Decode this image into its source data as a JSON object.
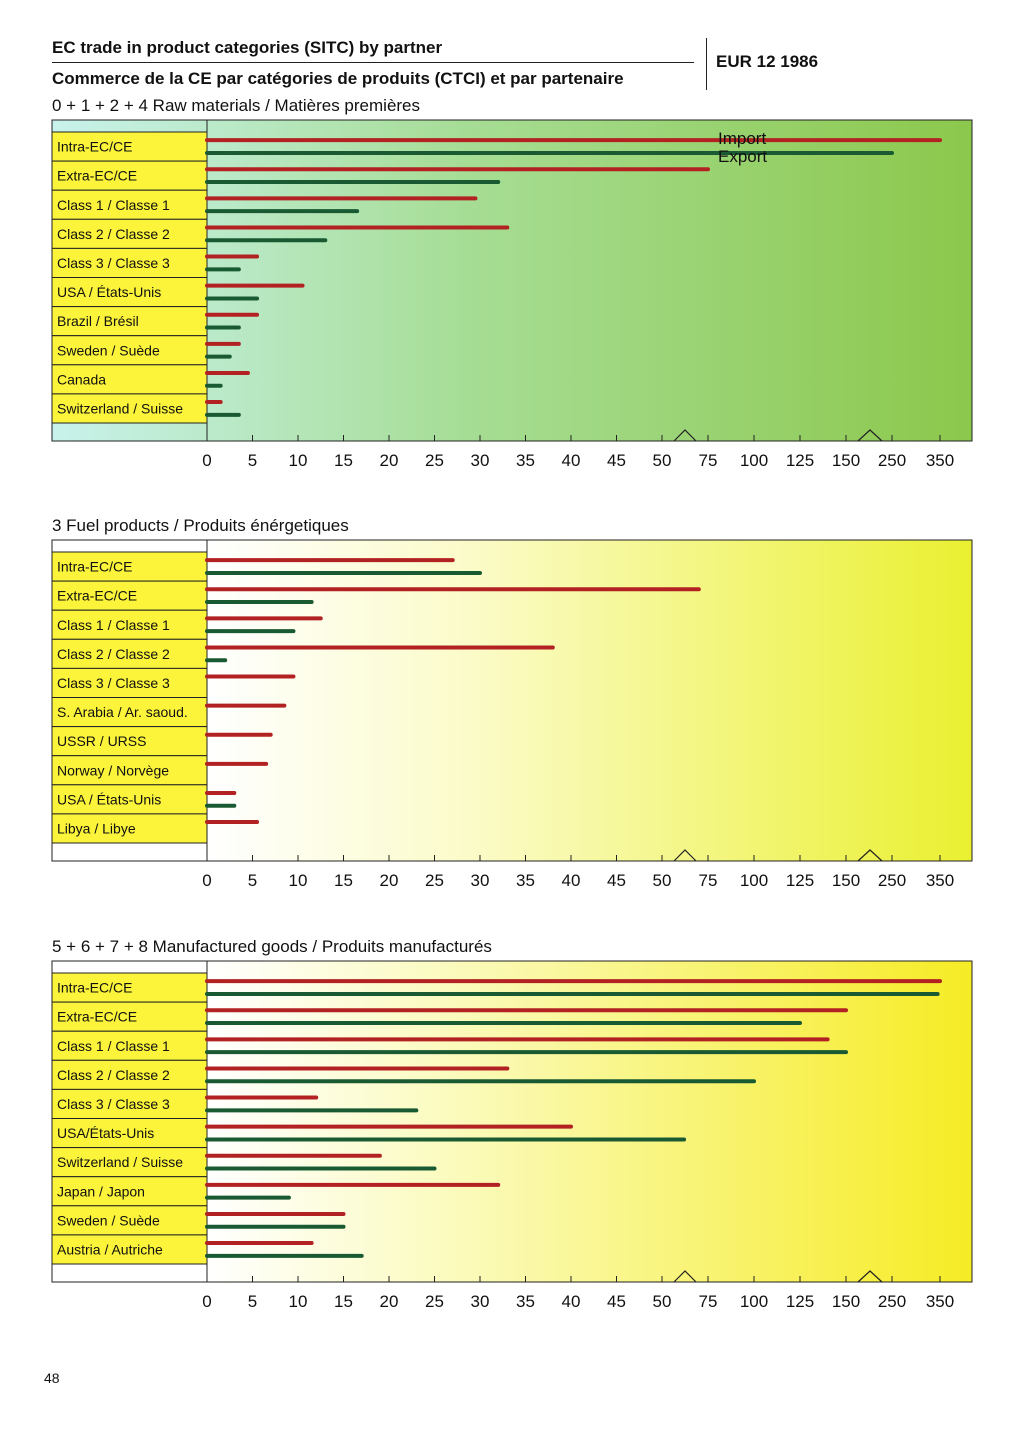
{
  "header": {
    "title_en": "EC trade in product categories (SITC) by partner",
    "title_fr": "Commerce de la CE par catégories de produits (CTCI) et par partenaire",
    "reference": "EUR 12 1986"
  },
  "page_number": "48",
  "colors": {
    "import": "#b32222",
    "export": "#1a5a32"
  },
  "chart_data": [
    {
      "type": "bar",
      "title": "0 + 1 + 2 + 4 Raw materials / Matières premières",
      "legend": [
        "Import",
        "Export"
      ],
      "legend_position": "top-right",
      "x_ticks": [
        "0",
        "5",
        "10",
        "15",
        "20",
        "25",
        "30",
        "35",
        "40",
        "45",
        "50",
        "75",
        "100",
        "125",
        "150",
        "250",
        "350"
      ],
      "categories": [
        "Intra-EC/CE",
        "Extra-EC/CE",
        "Class 1 / Classe 1",
        "Class 2 / Classe 2",
        "Class 3 / Classe 3",
        "USA / États-Unis",
        "Brazil / Brésil",
        "Sweden / Suède",
        "Canada",
        "Switzerland / Suisse"
      ],
      "series": [
        {
          "name": "Import",
          "values": [
            350,
            75,
            29.5,
            33,
            5.5,
            10.5,
            5.5,
            3.5,
            4.5,
            1.5
          ]
        },
        {
          "name": "Export",
          "values": [
            250,
            32,
            16.5,
            13,
            3.5,
            5.5,
            3.5,
            2.5,
            1.5,
            3.5
          ]
        }
      ]
    },
    {
      "type": "bar",
      "title": "3 Fuel products / Produits énérgetiques",
      "x_ticks": [
        "0",
        "5",
        "10",
        "15",
        "20",
        "25",
        "30",
        "35",
        "40",
        "45",
        "50",
        "75",
        "100",
        "125",
        "150",
        "250",
        "350"
      ],
      "categories": [
        "Intra-EC/CE",
        "Extra-EC/CE",
        "Class 1 / Classe 1",
        "Class 2 / Classe 2",
        "Class 3 / Classe 3",
        "S. Arabia / Ar. saoud.",
        "USSR / URSS",
        "Norway / Norvège",
        "USA / États-Unis",
        "Libya / Libye"
      ],
      "series": [
        {
          "name": "Import",
          "values": [
            27,
            70,
            12.5,
            38,
            9.5,
            8.5,
            7,
            6.5,
            3,
            5.5
          ]
        },
        {
          "name": "Export",
          "values": [
            30,
            11.5,
            9.5,
            2,
            0,
            0,
            0,
            0,
            3,
            0
          ]
        }
      ]
    },
    {
      "type": "bar",
      "title": "5 + 6 + 7 + 8 Manufactured goods / Produits manufacturés",
      "x_ticks": [
        "0",
        "5",
        "10",
        "15",
        "20",
        "25",
        "30",
        "35",
        "40",
        "45",
        "50",
        "75",
        "100",
        "125",
        "150",
        "250",
        "350"
      ],
      "categories": [
        "Intra-EC/CE",
        "Extra-EC/CE",
        "Class 1 / Classe 1",
        "Class 2 / Classe 2",
        "Class 3 / Classe 3",
        "USA/États-Unis",
        "Switzerland / Suisse",
        "Japan / Japon",
        "Sweden / Suède",
        "Austria / Autriche"
      ],
      "series": [
        {
          "name": "Import",
          "values": [
            350,
            150,
            140,
            33,
            12,
            40,
            19,
            32,
            15,
            11.5
          ]
        },
        {
          "name": "Export",
          "values": [
            345,
            125,
            150,
            100,
            23,
            62,
            25,
            9,
            15,
            17
          ]
        }
      ]
    }
  ]
}
